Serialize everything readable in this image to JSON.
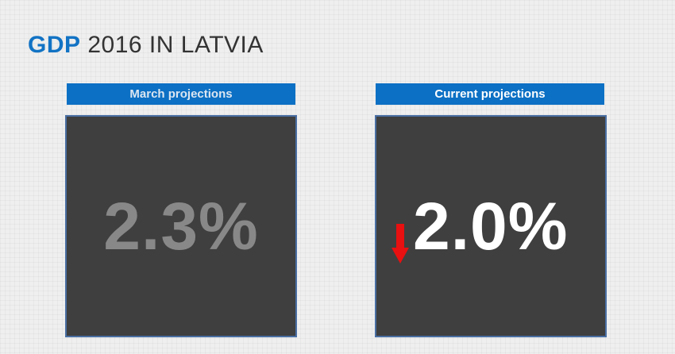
{
  "title": {
    "accent": "GDP",
    "rest": " 2016 IN LATVIA"
  },
  "panels": {
    "march": {
      "header": "March projections",
      "value": "2.3%"
    },
    "current": {
      "header": "Current projections",
      "value": "2.0%",
      "trend_icon": "down-arrow-icon",
      "trend_color": "#e81010"
    }
  },
  "colors": {
    "accent": "#1273c4",
    "header_bg": "#0c70c4",
    "panel_bg": "#3f3f3f"
  }
}
